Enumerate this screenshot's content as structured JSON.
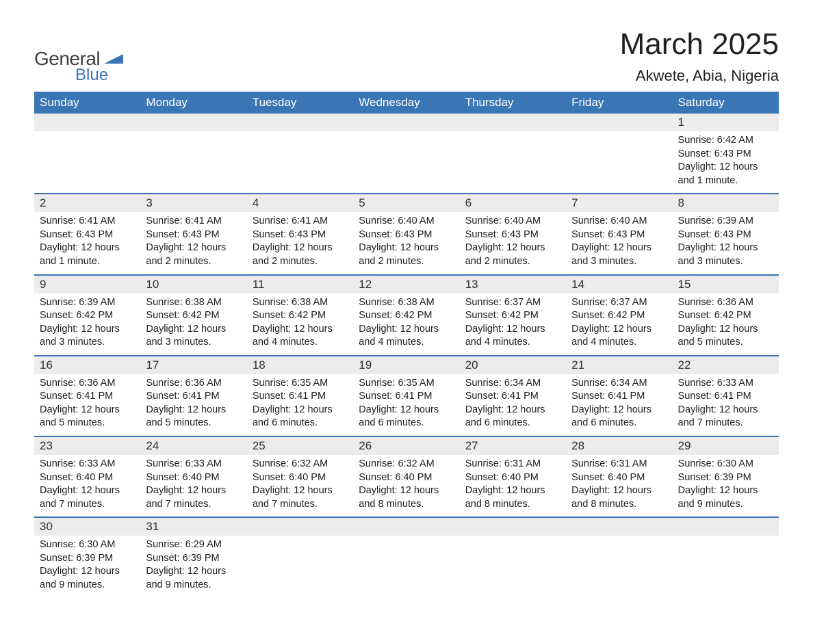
{
  "logo": {
    "text_general": "General",
    "text_blue": "Blue",
    "flag_color": "#3a75b5"
  },
  "title": "March 2025",
  "location": "Akwete, Abia, Nigeria",
  "colors": {
    "header_bg": "#3a75b5",
    "header_text": "#ffffff",
    "daynum_bg": "#ececec",
    "text": "#202020",
    "rule": "#3a75b5",
    "page_bg": "#ffffff"
  },
  "typography": {
    "title_fontsize": 44,
    "location_fontsize": 22,
    "header_fontsize": 17,
    "daynum_fontsize": 17,
    "body_fontsize": 14.5,
    "font_family": "Arial"
  },
  "day_headers": [
    "Sunday",
    "Monday",
    "Tuesday",
    "Wednesday",
    "Thursday",
    "Friday",
    "Saturday"
  ],
  "weeks": [
    [
      null,
      null,
      null,
      null,
      null,
      null,
      {
        "n": "1",
        "sunrise": "6:42 AM",
        "sunset": "6:43 PM",
        "daylight": "12 hours and 1 minute."
      }
    ],
    [
      {
        "n": "2",
        "sunrise": "6:41 AM",
        "sunset": "6:43 PM",
        "daylight": "12 hours and 1 minute."
      },
      {
        "n": "3",
        "sunrise": "6:41 AM",
        "sunset": "6:43 PM",
        "daylight": "12 hours and 2 minutes."
      },
      {
        "n": "4",
        "sunrise": "6:41 AM",
        "sunset": "6:43 PM",
        "daylight": "12 hours and 2 minutes."
      },
      {
        "n": "5",
        "sunrise": "6:40 AM",
        "sunset": "6:43 PM",
        "daylight": "12 hours and 2 minutes."
      },
      {
        "n": "6",
        "sunrise": "6:40 AM",
        "sunset": "6:43 PM",
        "daylight": "12 hours and 2 minutes."
      },
      {
        "n": "7",
        "sunrise": "6:40 AM",
        "sunset": "6:43 PM",
        "daylight": "12 hours and 3 minutes."
      },
      {
        "n": "8",
        "sunrise": "6:39 AM",
        "sunset": "6:43 PM",
        "daylight": "12 hours and 3 minutes."
      }
    ],
    [
      {
        "n": "9",
        "sunrise": "6:39 AM",
        "sunset": "6:42 PM",
        "daylight": "12 hours and 3 minutes."
      },
      {
        "n": "10",
        "sunrise": "6:38 AM",
        "sunset": "6:42 PM",
        "daylight": "12 hours and 3 minutes."
      },
      {
        "n": "11",
        "sunrise": "6:38 AM",
        "sunset": "6:42 PM",
        "daylight": "12 hours and 4 minutes."
      },
      {
        "n": "12",
        "sunrise": "6:38 AM",
        "sunset": "6:42 PM",
        "daylight": "12 hours and 4 minutes."
      },
      {
        "n": "13",
        "sunrise": "6:37 AM",
        "sunset": "6:42 PM",
        "daylight": "12 hours and 4 minutes."
      },
      {
        "n": "14",
        "sunrise": "6:37 AM",
        "sunset": "6:42 PM",
        "daylight": "12 hours and 4 minutes."
      },
      {
        "n": "15",
        "sunrise": "6:36 AM",
        "sunset": "6:42 PM",
        "daylight": "12 hours and 5 minutes."
      }
    ],
    [
      {
        "n": "16",
        "sunrise": "6:36 AM",
        "sunset": "6:41 PM",
        "daylight": "12 hours and 5 minutes."
      },
      {
        "n": "17",
        "sunrise": "6:36 AM",
        "sunset": "6:41 PM",
        "daylight": "12 hours and 5 minutes."
      },
      {
        "n": "18",
        "sunrise": "6:35 AM",
        "sunset": "6:41 PM",
        "daylight": "12 hours and 6 minutes."
      },
      {
        "n": "19",
        "sunrise": "6:35 AM",
        "sunset": "6:41 PM",
        "daylight": "12 hours and 6 minutes."
      },
      {
        "n": "20",
        "sunrise": "6:34 AM",
        "sunset": "6:41 PM",
        "daylight": "12 hours and 6 minutes."
      },
      {
        "n": "21",
        "sunrise": "6:34 AM",
        "sunset": "6:41 PM",
        "daylight": "12 hours and 6 minutes."
      },
      {
        "n": "22",
        "sunrise": "6:33 AM",
        "sunset": "6:41 PM",
        "daylight": "12 hours and 7 minutes."
      }
    ],
    [
      {
        "n": "23",
        "sunrise": "6:33 AM",
        "sunset": "6:40 PM",
        "daylight": "12 hours and 7 minutes."
      },
      {
        "n": "24",
        "sunrise": "6:33 AM",
        "sunset": "6:40 PM",
        "daylight": "12 hours and 7 minutes."
      },
      {
        "n": "25",
        "sunrise": "6:32 AM",
        "sunset": "6:40 PM",
        "daylight": "12 hours and 7 minutes."
      },
      {
        "n": "26",
        "sunrise": "6:32 AM",
        "sunset": "6:40 PM",
        "daylight": "12 hours and 8 minutes."
      },
      {
        "n": "27",
        "sunrise": "6:31 AM",
        "sunset": "6:40 PM",
        "daylight": "12 hours and 8 minutes."
      },
      {
        "n": "28",
        "sunrise": "6:31 AM",
        "sunset": "6:40 PM",
        "daylight": "12 hours and 8 minutes."
      },
      {
        "n": "29",
        "sunrise": "6:30 AM",
        "sunset": "6:39 PM",
        "daylight": "12 hours and 9 minutes."
      }
    ],
    [
      {
        "n": "30",
        "sunrise": "6:30 AM",
        "sunset": "6:39 PM",
        "daylight": "12 hours and 9 minutes."
      },
      {
        "n": "31",
        "sunrise": "6:29 AM",
        "sunset": "6:39 PM",
        "daylight": "12 hours and 9 minutes."
      },
      null,
      null,
      null,
      null,
      null
    ]
  ],
  "labels": {
    "sunrise": "Sunrise: ",
    "sunset": "Sunset: ",
    "daylight": "Daylight: "
  }
}
